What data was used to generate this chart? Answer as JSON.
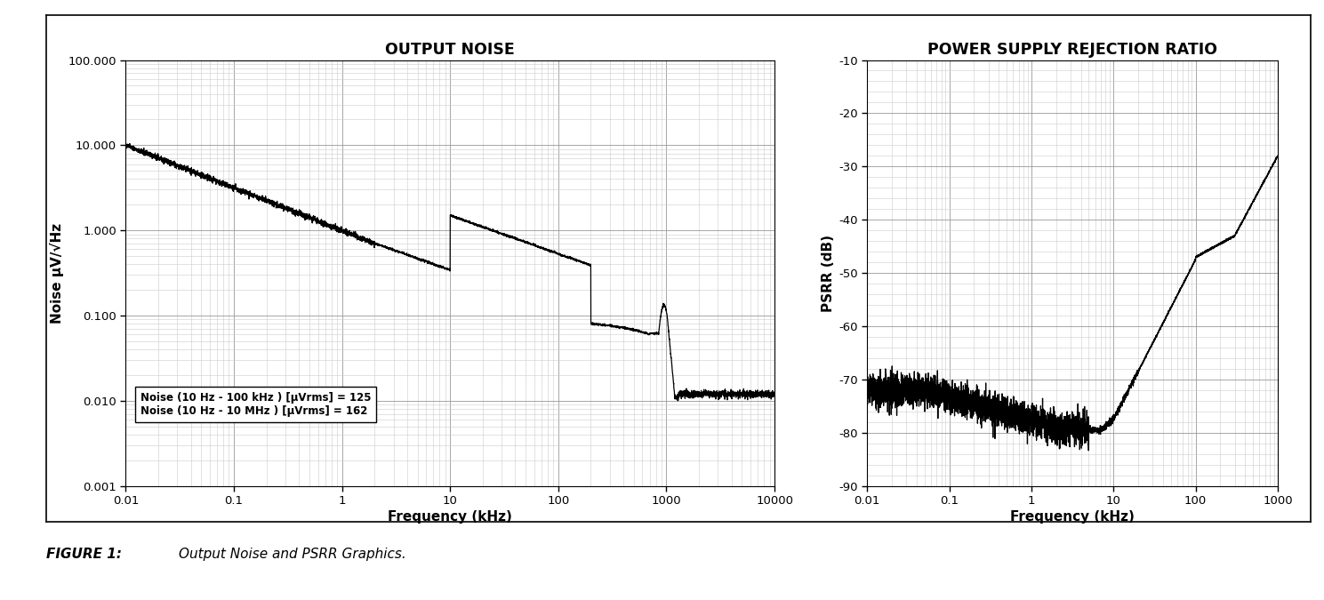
{
  "noise_title": "OUTPUT NOISE",
  "psrr_title": "POWER SUPPLY REJECTION RATIO",
  "noise_xlabel": "Frequency (kHz)",
  "noise_ylabel": "Noise μV/√Hz",
  "psrr_xlabel": "Frequency (kHz)",
  "psrr_ylabel": "PSRR (dB)",
  "noise_xlim": [
    0.01,
    10000
  ],
  "noise_ylim": [
    0.001,
    100.0
  ],
  "psrr_xlim": [
    0.01,
    1000
  ],
  "psrr_ylim": [
    -90,
    -10
  ],
  "noise_yticks": [
    0.001,
    0.01,
    0.1,
    1.0,
    10.0,
    100.0
  ],
  "noise_ytick_labels": [
    "0.001",
    "0.010",
    "0.100",
    "1.000",
    "10.000",
    "100.000"
  ],
  "noise_xticks": [
    0.01,
    0.1,
    1,
    10,
    100,
    1000,
    10000
  ],
  "noise_xtick_labels": [
    "0.01",
    "0.1",
    "1",
    "10",
    "100",
    "1000",
    "10000"
  ],
  "psrr_xticks": [
    0.01,
    0.1,
    1,
    10,
    100,
    1000
  ],
  "psrr_xtick_labels": [
    "0.01",
    "0.1",
    "1",
    "10",
    "100",
    "1000"
  ],
  "psrr_yticks": [
    -90,
    -80,
    -70,
    -60,
    -50,
    -40,
    -30,
    -20,
    -10
  ],
  "psrr_ytick_labels": [
    "-90",
    "-80",
    "-70",
    "-60",
    "-50",
    "-40",
    "-30",
    "-20",
    "-10"
  ],
  "noise_annotation_line1": "Noise (10 Hz - 100 kHz ) [μVrms] = 125",
  "noise_annotation_line2": "Noise (10 Hz - 10 MHz ) [μVrms] = 162",
  "figure_caption": "FIGURE 1:",
  "figure_caption_text": "Output Noise and PSRR Graphics.",
  "line_color": "#000000",
  "grid_minor_color": "#cccccc",
  "grid_major_color": "#999999",
  "background_color": "#ffffff"
}
